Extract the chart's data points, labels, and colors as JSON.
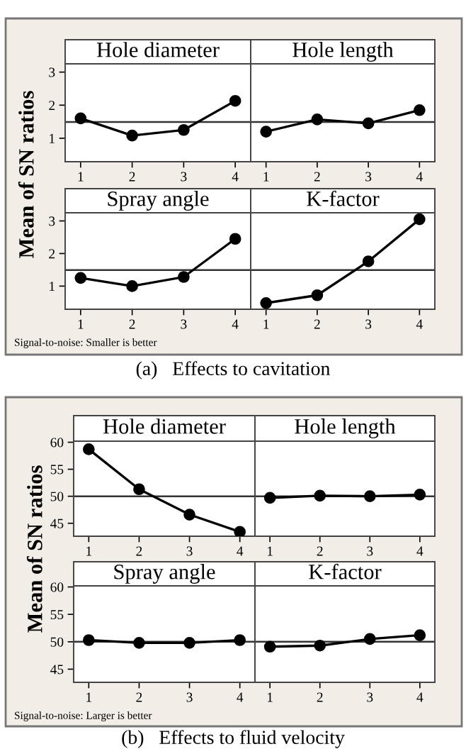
{
  "chart_data": [
    {
      "type": "line",
      "title": "Hole diameter",
      "ylabel": "Mean of SN ratios",
      "x": [
        1,
        2,
        3,
        4
      ],
      "xlim": [
        0.7,
        4.3
      ],
      "xticks": [
        1,
        2,
        3,
        4
      ],
      "ylim": [
        0.29,
        3.25
      ],
      "yticks": [
        1,
        2,
        3
      ],
      "tick_labels": "xy",
      "marker": "circle",
      "line_style": "solid",
      "series": [
        {
          "color": "#000000",
          "values": [
            1.6,
            1.08,
            1.25,
            2.13
          ]
        }
      ],
      "ref_lines": [
        {
          "axis": "y",
          "value": 1.49,
          "color": "#333333"
        }
      ]
    },
    {
      "type": "line",
      "title": "Hole length",
      "x": [
        1,
        2,
        3,
        4
      ],
      "xlim": [
        0.7,
        4.3
      ],
      "xticks": [
        1,
        2,
        3,
        4
      ],
      "ylim": [
        0.29,
        3.25
      ],
      "yticks": [
        1,
        2,
        3
      ],
      "tick_labels": "x",
      "marker": "circle",
      "line_style": "solid",
      "series": [
        {
          "color": "#000000",
          "values": [
            1.2,
            1.57,
            1.45,
            1.85
          ]
        }
      ],
      "ref_lines": [
        {
          "axis": "y",
          "value": 1.49,
          "color": "#333333"
        }
      ]
    },
    {
      "type": "line",
      "title": "Spray angle",
      "x": [
        1,
        2,
        3,
        4
      ],
      "xlim": [
        0.7,
        4.3
      ],
      "xticks": [
        1,
        2,
        3,
        4
      ],
      "ylim": [
        0.29,
        3.25
      ],
      "yticks": [
        1,
        2,
        3
      ],
      "tick_labels": "xy",
      "marker": "circle",
      "line_style": "solid",
      "series": [
        {
          "color": "#000000",
          "values": [
            1.25,
            1.0,
            1.28,
            2.45
          ]
        }
      ],
      "ref_lines": [
        {
          "axis": "y",
          "value": 1.49,
          "color": "#333333"
        }
      ],
      "annotations": [
        "Signal-to-noise: Smaller is better",
        "(a)   Effects to cavitation"
      ]
    },
    {
      "type": "line",
      "title": "K-factor",
      "x": [
        1,
        2,
        3,
        4
      ],
      "xlim": [
        0.7,
        4.3
      ],
      "xticks": [
        1,
        2,
        3,
        4
      ],
      "ylim": [
        0.29,
        3.25
      ],
      "yticks": [
        1,
        2,
        3
      ],
      "tick_labels": "x",
      "marker": "circle",
      "line_style": "solid",
      "series": [
        {
          "color": "#000000",
          "values": [
            0.48,
            0.72,
            1.76,
            3.05
          ]
        }
      ],
      "ref_lines": [
        {
          "axis": "y",
          "value": 1.49,
          "color": "#333333"
        }
      ]
    },
    {
      "type": "line",
      "title": "Hole diameter",
      "ylabel": "Mean of SN ratios",
      "x": [
        1,
        2,
        3,
        4
      ],
      "xlim": [
        0.7,
        4.3
      ],
      "xticks": [
        1,
        2,
        3,
        4
      ],
      "ylim": [
        42.6,
        60.2
      ],
      "yticks": [
        45,
        50,
        55,
        60
      ],
      "tick_labels": "xy",
      "marker": "circle",
      "line_style": "solid",
      "series": [
        {
          "color": "#000000",
          "values": [
            58.7,
            51.3,
            46.6,
            43.4
          ]
        }
      ],
      "ref_lines": [
        {
          "axis": "y",
          "value": 50,
          "color": "#333333"
        }
      ]
    },
    {
      "type": "line",
      "title": "Hole length",
      "x": [
        1,
        2,
        3,
        4
      ],
      "xlim": [
        0.7,
        4.3
      ],
      "xticks": [
        1,
        2,
        3,
        4
      ],
      "ylim": [
        42.6,
        60.2
      ],
      "yticks": [
        45,
        50,
        55,
        60
      ],
      "tick_labels": "x",
      "marker": "circle",
      "line_style": "solid",
      "series": [
        {
          "color": "#000000",
          "values": [
            49.7,
            50.1,
            50.0,
            50.3
          ]
        }
      ],
      "ref_lines": [
        {
          "axis": "y",
          "value": 50,
          "color": "#333333"
        }
      ]
    },
    {
      "type": "line",
      "title": "Spray angle",
      "x": [
        1,
        2,
        3,
        4
      ],
      "xlim": [
        0.7,
        4.3
      ],
      "xticks": [
        1,
        2,
        3,
        4
      ],
      "ylim": [
        42.6,
        60.2
      ],
      "yticks": [
        45,
        50,
        55,
        60
      ],
      "tick_labels": "xy",
      "marker": "circle",
      "line_style": "solid",
      "series": [
        {
          "color": "#000000",
          "values": [
            50.3,
            49.8,
            49.8,
            50.3
          ]
        }
      ],
      "ref_lines": [
        {
          "axis": "y",
          "value": 50,
          "color": "#333333"
        }
      ],
      "annotations": [
        "Signal-to-noise: Larger is better",
        "(b)   Effects to fluid velocity"
      ]
    },
    {
      "type": "line",
      "title": "K-factor",
      "x": [
        1,
        2,
        3,
        4
      ],
      "xlim": [
        0.7,
        4.3
      ],
      "xticks": [
        1,
        2,
        3,
        4
      ],
      "ylim": [
        42.6,
        60.2
      ],
      "yticks": [
        45,
        50,
        55,
        60
      ],
      "tick_labels": "x",
      "marker": "circle",
      "line_style": "solid",
      "series": [
        {
          "color": "#000000",
          "values": [
            49.1,
            49.3,
            50.5,
            51.2
          ]
        }
      ],
      "ref_lines": [
        {
          "axis": "y",
          "value": 50,
          "color": "#333333"
        }
      ]
    }
  ]
}
